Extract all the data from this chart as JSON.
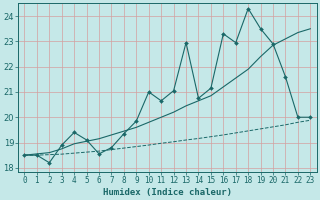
{
  "xlabel": "Humidex (Indice chaleur)",
  "background_color": "#c5e8e8",
  "grid_color": "#d4a0a0",
  "line_color": "#1a6868",
  "x": [
    0,
    1,
    2,
    3,
    4,
    5,
    6,
    7,
    8,
    9,
    10,
    11,
    12,
    13,
    14,
    15,
    16,
    17,
    18,
    19,
    20,
    21,
    22,
    23
  ],
  "y_jagged": [
    18.5,
    18.5,
    18.2,
    18.9,
    19.4,
    19.1,
    18.55,
    18.8,
    19.35,
    19.85,
    21.0,
    20.65,
    21.05,
    22.95,
    20.75,
    21.15,
    23.3,
    22.95,
    24.3,
    23.5,
    22.9,
    21.6,
    20.0,
    20.0
  ],
  "y_trend": [
    18.5,
    18.55,
    18.6,
    18.75,
    18.95,
    19.05,
    19.15,
    19.3,
    19.45,
    19.6,
    19.8,
    20.0,
    20.2,
    20.45,
    20.65,
    20.85,
    21.2,
    21.55,
    21.9,
    22.4,
    22.85,
    23.1,
    23.35,
    23.5
  ],
  "y_flat": [
    18.5,
    18.5,
    18.52,
    18.54,
    18.58,
    18.62,
    18.66,
    18.72,
    18.78,
    18.84,
    18.9,
    18.97,
    19.03,
    19.1,
    19.16,
    19.23,
    19.3,
    19.38,
    19.46,
    19.54,
    19.62,
    19.7,
    19.8,
    19.88
  ],
  "ylim": [
    17.85,
    24.5
  ],
  "xlim": [
    -0.5,
    23.5
  ],
  "yticks": [
    18,
    19,
    20,
    21,
    22,
    23,
    24
  ],
  "xticks": [
    0,
    1,
    2,
    3,
    4,
    5,
    6,
    7,
    8,
    9,
    10,
    11,
    12,
    13,
    14,
    15,
    16,
    17,
    18,
    19,
    20,
    21,
    22,
    23
  ],
  "xlabel_fontsize": 6.5,
  "tick_fontsize": 5.5
}
